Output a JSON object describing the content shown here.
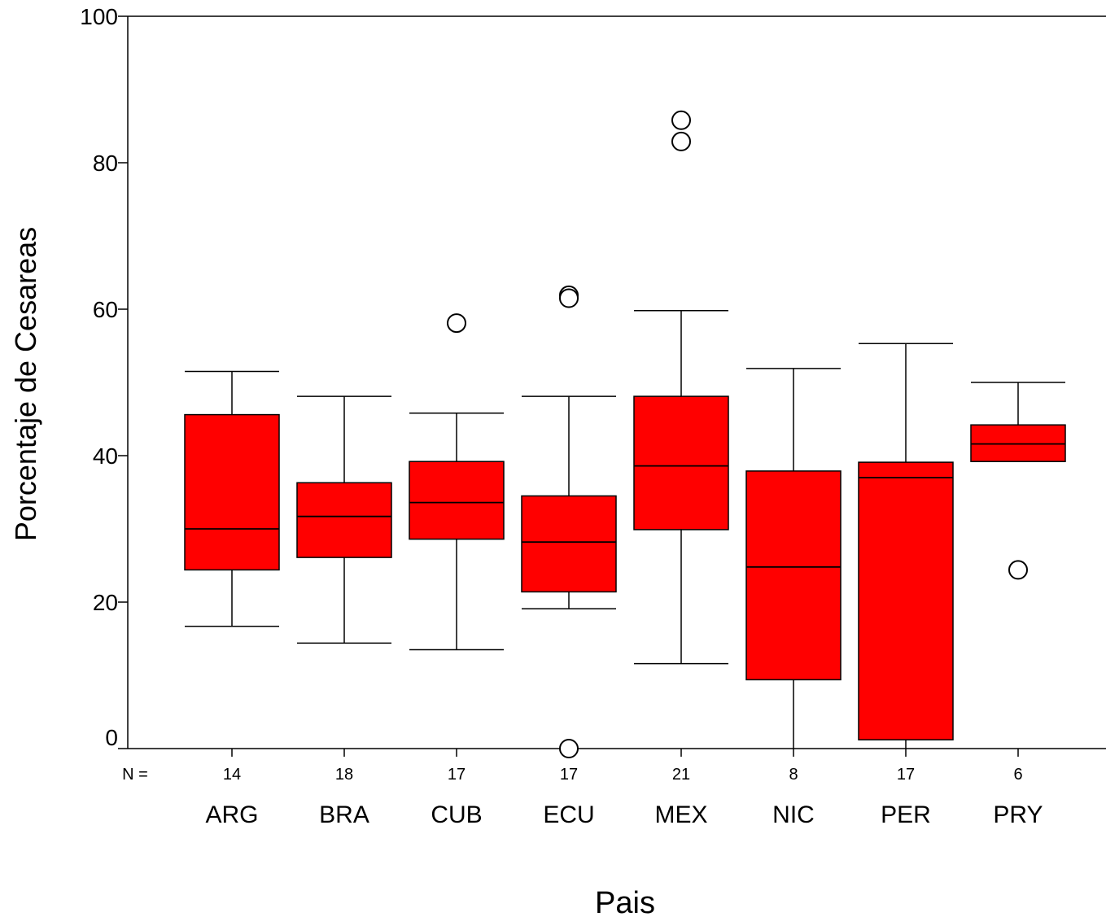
{
  "chart_data": {
    "type": "boxplot",
    "title": "",
    "xlabel": "Pais",
    "ylabel": "Porcentaje de Cesareas",
    "ylim": [
      0,
      100
    ],
    "yticks": [
      0,
      20,
      40,
      60,
      80,
      100
    ],
    "n_prefix": "N =",
    "grid": false,
    "legend": "none",
    "box_color": "#ff0000",
    "categories": [
      "ARG",
      "BRA",
      "CUB",
      "ECU",
      "MEX",
      "NIC",
      "PER",
      "PRY"
    ],
    "boxes": [
      {
        "category": "ARG",
        "n": "14",
        "whisker_low": 16.7,
        "q1": 24.4,
        "median": 30.0,
        "q3": 45.6,
        "whisker_high": 51.5,
        "outliers": []
      },
      {
        "category": "BRA",
        "n": "18",
        "whisker_low": 14.4,
        "q1": 26.1,
        "median": 31.7,
        "q3": 36.3,
        "whisker_high": 48.1,
        "outliers": []
      },
      {
        "category": "CUB",
        "n": "17",
        "whisker_low": 13.5,
        "q1": 28.6,
        "median": 33.6,
        "q3": 39.2,
        "whisker_high": 45.8,
        "outliers": [
          58.1
        ]
      },
      {
        "category": "ECU",
        "n": "17",
        "whisker_low": 19.1,
        "q1": 21.4,
        "median": 28.2,
        "q3": 34.5,
        "whisker_high": 48.1,
        "outliers": [
          61.9,
          61.5,
          0.0
        ]
      },
      {
        "category": "MEX",
        "n": "21",
        "whisker_low": 11.6,
        "q1": 29.9,
        "median": 38.6,
        "q3": 48.1,
        "whisker_high": 59.8,
        "outliers": [
          85.8,
          82.9
        ]
      },
      {
        "category": "NIC",
        "n": "8",
        "whisker_low": 0.0,
        "q1": 9.4,
        "median": 24.8,
        "q3": 37.9,
        "whisker_high": 51.9,
        "outliers": []
      },
      {
        "category": "PER",
        "n": "17",
        "whisker_low": 0.0,
        "q1": 1.2,
        "median": 37.0,
        "q3": 39.1,
        "whisker_high": 55.3,
        "outliers": []
      },
      {
        "category": "PRY",
        "n": "6",
        "whisker_low": 39.2,
        "q1": 39.2,
        "median": 41.6,
        "q3": 44.2,
        "whisker_high": 50.0,
        "outliers": [
          24.4
        ]
      }
    ]
  }
}
